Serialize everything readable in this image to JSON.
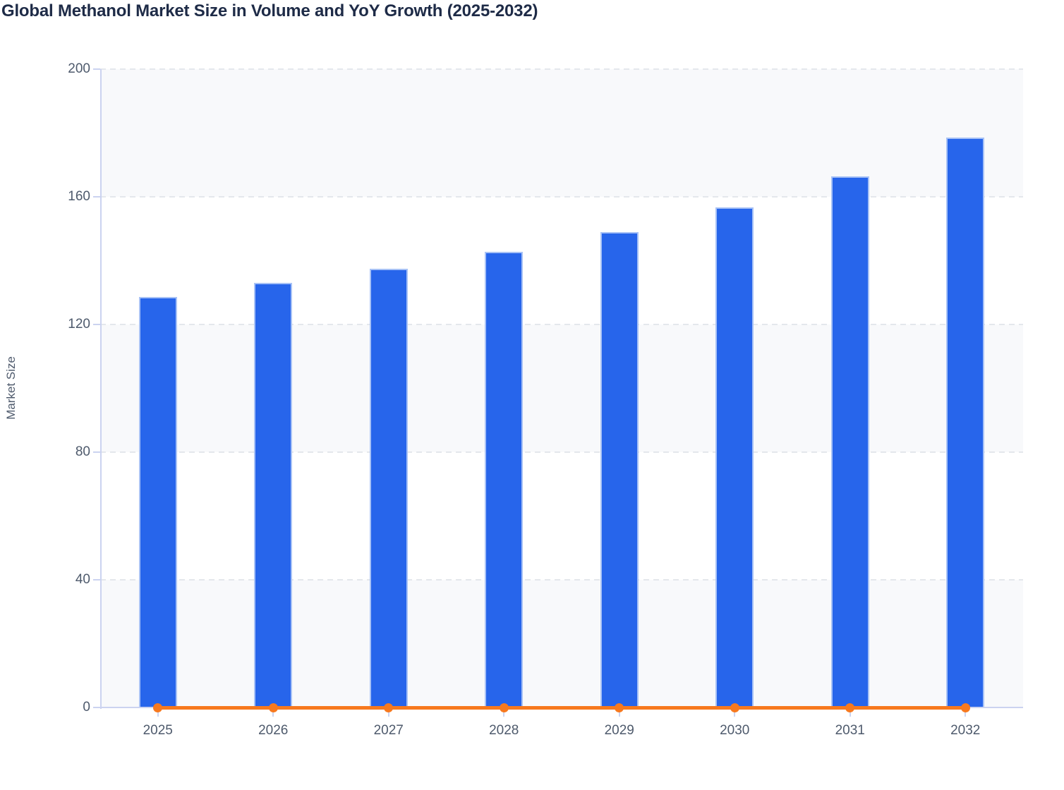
{
  "title": "Global Methanol Market Size in Volume and YoY Growth (2025-2032)",
  "colors": {
    "bar_fill": "#2765EB",
    "bar_border": "#A8C2F6",
    "line": "#F7791E",
    "axis": "#CBD3F0",
    "grid": "#E4E7EC",
    "band": "#F8F9FB",
    "title_text": "#1E2B47",
    "tick_text": "#4E5A6C"
  },
  "chart_data": {
    "type": "bar",
    "title": "Global Methanol Market Size in Volume and YoY Growth (2025-2032)",
    "categories": [
      "2025",
      "2026",
      "2027",
      "2028",
      "2029",
      "2030",
      "2031",
      "2032"
    ],
    "series": [
      {
        "name": "Market Size",
        "type": "bar",
        "values": [
          128.7,
          133.0,
          137.4,
          142.8,
          149.0,
          156.7,
          166.4,
          178.5
        ]
      },
      {
        "name": "YoY Growth",
        "type": "line",
        "values": [
          0,
          0,
          0,
          0,
          0,
          0,
          0,
          0
        ]
      }
    ],
    "xlabel": "",
    "ylabel": "Market Size",
    "yticks": [
      0,
      40,
      80,
      120,
      160,
      200
    ],
    "ylim": [
      0,
      200
    ],
    "grid": "horizontal-dashed",
    "bands": "alternating horizontal fills between gridline pairs 0-40, 80-120, 160-200",
    "legend_position": "none"
  }
}
